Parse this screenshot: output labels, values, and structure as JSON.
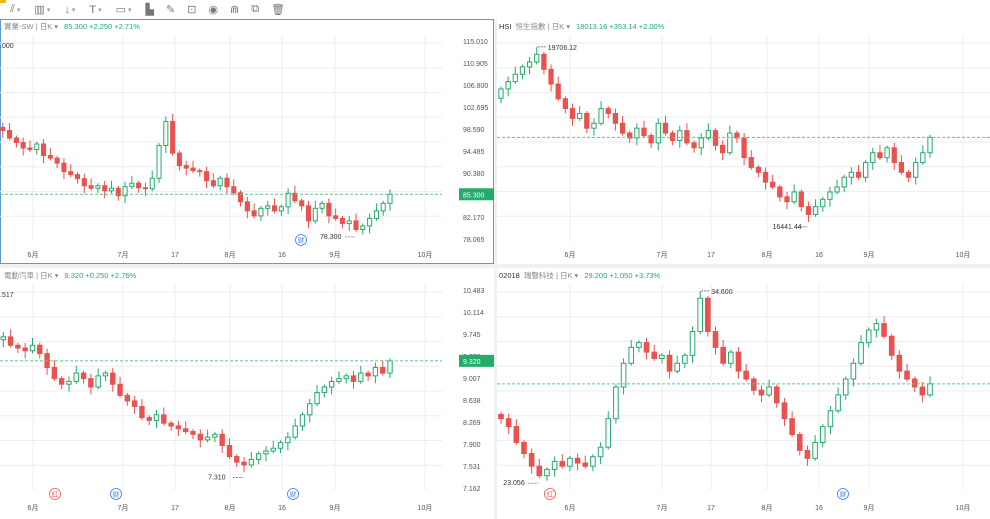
{
  "toolbar": {
    "items": [
      {
        "name": "indicator-tool-icon",
        "glyph": "⫽",
        "caret": true
      },
      {
        "name": "volume-bars-icon",
        "glyph": "▥",
        "caret": true
      },
      {
        "name": "arrow-down-tool-icon",
        "glyph": "↓",
        "caret": true
      },
      {
        "name": "text-tool-icon",
        "glyph": "T",
        "caret": true
      },
      {
        "name": "picture-tool-icon",
        "glyph": "▭",
        "caret": true
      },
      {
        "name": "chart-type-icon",
        "glyph": "▙",
        "caret": false
      },
      {
        "name": "pencil-icon",
        "glyph": "✎",
        "caret": false
      },
      {
        "name": "lock-icon",
        "glyph": "⊡",
        "caret": false
      },
      {
        "name": "eye-icon",
        "glyph": "◉",
        "caret": false
      },
      {
        "name": "magnet-icon",
        "glyph": "⋒",
        "caret": false
      },
      {
        "name": "layers-icon",
        "glyph": "⧉",
        "caret": false
      },
      {
        "name": "trash-icon",
        "glyph": "🗑",
        "caret": false
      }
    ]
  },
  "colors": {
    "up": "#22ab6a",
    "down": "#e8524f",
    "grid": "#eeeeee",
    "dashed": "#57c98b",
    "price_bg": "#22ab6a",
    "event_red": "#e8524f",
    "event_blue": "#3b7ddd"
  },
  "panels": [
    {
      "id": "tl",
      "symbol": "",
      "subtitle": "實業-SW | 日K ▾",
      "quote": "85.300 +2.250 +2.71%",
      "left_value": ".000",
      "price_tag": "85.300",
      "y_ticks": [
        "115.010",
        "110.905",
        "106.800",
        "102.695",
        "98.590",
        "94.485",
        "90.380",
        "86.275",
        "82.170",
        "78.065"
      ],
      "x_ticks": [
        "6月",
        "7月",
        "17",
        "8月",
        "16",
        "9月",
        "10月"
      ],
      "annotations": [
        {
          "text": "78.300"
        }
      ],
      "events": [
        {
          "text": "财",
          "kind": "blue"
        }
      ],
      "chart_data": {
        "type": "candlestick",
        "ylim": [
          76,
          117
        ],
        "last": 85.3,
        "closes": [
          98.6,
          98.0,
          96.5,
          95.6,
          94.5,
          94.2,
          95.3,
          93.0,
          92.5,
          91.5,
          89.8,
          89.2,
          88.4,
          87.0,
          86.5,
          87.0,
          86.0,
          86.5,
          85.0,
          86.8,
          87.5,
          86.6,
          86.4,
          88.5,
          95.0,
          99.8,
          93.5,
          91.0,
          90.5,
          90.0,
          89.8,
          88.0,
          87.0,
          88.5,
          86.8,
          85.6,
          83.8,
          82.0,
          81.0,
          82.5,
          83.0,
          82.0,
          82.8,
          85.5,
          84.0,
          83.0,
          80.0,
          82.5,
          83.5,
          81.0,
          80.5,
          79.5,
          80.0,
          78.3,
          79.0,
          80.5,
          82.0,
          83.5,
          85.3
        ]
      }
    },
    {
      "id": "tr",
      "symbol": "HSI",
      "subtitle": "恒生指數 | 日K ▾",
      "quote": "18013.16 +353.14 +2.00%",
      "left_value": "",
      "price_tag": "",
      "y_ticks": [],
      "x_ticks": [
        "6月",
        "7月",
        "17",
        "8月",
        "16",
        "9月",
        "10月"
      ],
      "annotations": [
        {
          "text": "19706.12"
        },
        {
          "text": "16441.44"
        }
      ],
      "events": [],
      "chart_data": {
        "type": "candlestick",
        "ylim": [
          15900,
          20100
        ],
        "last": 18013.16,
        "closes": [
          19000,
          19150,
          19300,
          19450,
          19550,
          19706,
          19400,
          19100,
          18800,
          18600,
          18400,
          18500,
          18200,
          18300,
          18600,
          18500,
          18300,
          18100,
          18000,
          18200,
          18050,
          17900,
          18300,
          18100,
          17950,
          18150,
          17900,
          17800,
          18000,
          18150,
          17850,
          17700,
          18100,
          18000,
          17600,
          17400,
          17300,
          17100,
          17000,
          16800,
          16700,
          16900,
          16600,
          16441,
          16600,
          16750,
          16900,
          17000,
          17200,
          17300,
          17200,
          17500,
          17700,
          17600,
          17800,
          17500,
          17300,
          17200,
          17500,
          17700,
          18013
        ]
      }
    },
    {
      "id": "bl",
      "symbol": "",
      "subtitle": "電動汽車 | 日K ▾",
      "quote": "9.320 +0.250 +2.76%",
      "left_value": ".517",
      "price_tag": "9.320",
      "y_ticks": [
        "10.483",
        "10.114",
        "9.745",
        "9.376",
        "9.007",
        "8.638",
        "8.269",
        "7.900",
        "7.531",
        "7.162"
      ],
      "x_ticks": [
        "6月",
        "7月",
        "17",
        "8月",
        "16",
        "9月",
        "10月"
      ],
      "annotations": [
        {
          "text": "7.310"
        }
      ],
      "events": [
        {
          "text": "红",
          "kind": "red"
        },
        {
          "text": "财",
          "kind": "blue"
        },
        {
          "text": "财",
          "kind": "blue"
        }
      ],
      "chart_data": {
        "type": "candlestick",
        "ylim": [
          7.0,
          10.7
        ],
        "last": 9.32,
        "closes": [
          9.7,
          9.75,
          9.6,
          9.55,
          9.5,
          9.6,
          9.45,
          9.2,
          9.0,
          8.9,
          8.95,
          9.1,
          9.0,
          8.85,
          9.05,
          9.1,
          8.9,
          8.7,
          8.6,
          8.5,
          8.3,
          8.25,
          8.35,
          8.2,
          8.15,
          8.1,
          8.05,
          8.0,
          7.9,
          7.95,
          8.0,
          7.8,
          7.6,
          7.5,
          7.45,
          7.55,
          7.65,
          7.7,
          7.75,
          7.85,
          7.95,
          8.15,
          8.35,
          8.55,
          8.75,
          8.85,
          8.95,
          9.0,
          9.05,
          8.95,
          9.1,
          9.05,
          9.2,
          9.1,
          9.32
        ]
      }
    },
    {
      "id": "br",
      "symbol": "02018",
      "subtitle": "瑞聲科技 | 日K ▾",
      "quote": "29.200 +1.050 +3.73%",
      "left_value": "",
      "price_tag": "",
      "y_ticks": [],
      "x_ticks": [
        "6月",
        "7月",
        "17",
        "8月",
        "16",
        "9月",
        "10月"
      ],
      "annotations": [
        {
          "text": "34.600"
        },
        {
          "text": "23.056"
        }
      ],
      "events": [
        {
          "text": "红",
          "kind": "red"
        },
        {
          "text": "财",
          "kind": "blue"
        }
      ],
      "chart_data": {
        "type": "candlestick",
        "ylim": [
          22.5,
          35.5
        ],
        "last": 29.2,
        "closes": [
          27.0,
          26.5,
          25.5,
          24.8,
          24.0,
          23.4,
          23.8,
          24.3,
          24.0,
          24.5,
          24.2,
          24.0,
          24.6,
          25.2,
          27.0,
          29.0,
          30.5,
          31.5,
          31.8,
          31.2,
          30.8,
          31.0,
          30.0,
          30.5,
          31.0,
          32.5,
          34.6,
          32.5,
          31.5,
          30.5,
          31.2,
          30.0,
          29.5,
          28.8,
          28.5,
          29.0,
          28.0,
          27.0,
          26.0,
          25.0,
          24.5,
          25.5,
          26.5,
          27.5,
          28.5,
          29.5,
          30.5,
          31.8,
          32.6,
          33.0,
          32.2,
          31.0,
          30.0,
          29.5,
          29.0,
          28.5,
          29.2
        ]
      }
    }
  ]
}
